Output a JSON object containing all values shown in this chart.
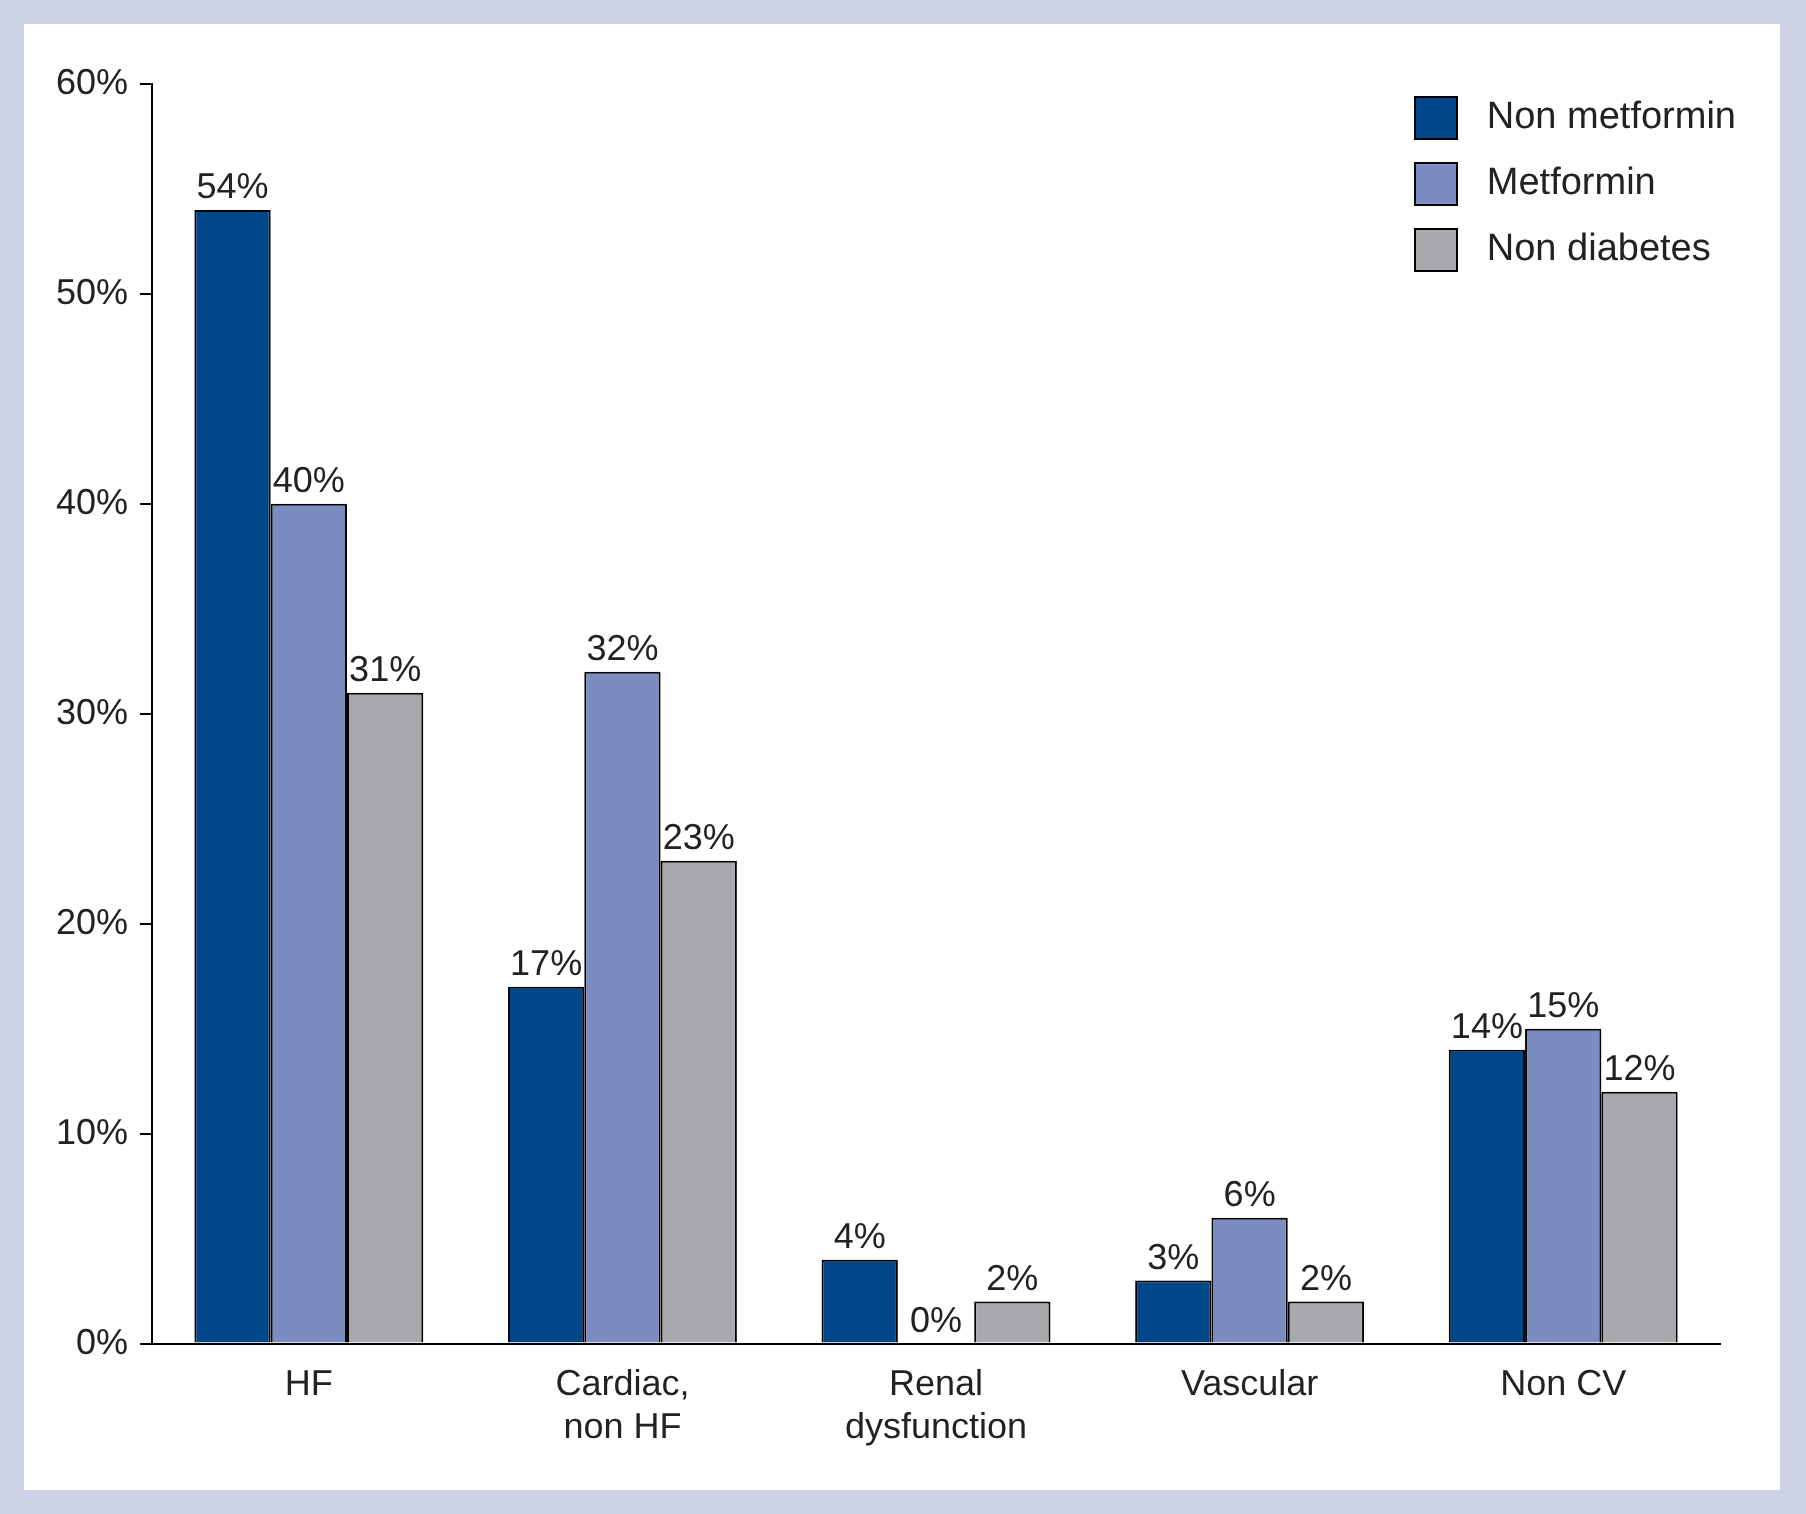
{
  "chart_data": {
    "type": "bar",
    "categories": [
      "HF",
      "Cardiac, non HF",
      "Renal dysfunction",
      "Vascular",
      "Non CV"
    ],
    "series": [
      {
        "name": "Non metformin",
        "color": "#00468b",
        "values": [
          54,
          17,
          4,
          3,
          14
        ],
        "value_labels": [
          "54%",
          "17%",
          "4%",
          "3%",
          "14%"
        ]
      },
      {
        "name": "Metformin",
        "color": "#7b8cc0",
        "values": [
          40,
          32,
          0,
          6,
          15
        ],
        "value_labels": [
          "40%",
          "32%",
          "0%",
          "6%",
          "15%"
        ]
      },
      {
        "name": "Non diabetes",
        "color": "#a8a9ad",
        "values": [
          31,
          23,
          2,
          2,
          12
        ],
        "value_labels": [
          "31%",
          "23%",
          "2%",
          "2%",
          "12%"
        ]
      }
    ],
    "ylim": [
      0,
      60
    ],
    "yticks": [
      {
        "value": 0,
        "label": "0%"
      },
      {
        "value": 10,
        "label": "10%"
      },
      {
        "value": 20,
        "label": "20%"
      },
      {
        "value": 30,
        "label": "30%"
      },
      {
        "value": 40,
        "label": "40%"
      },
      {
        "value": 50,
        "label": "50%"
      },
      {
        "value": 60,
        "label": "60%"
      }
    ],
    "grid": false,
    "legend": "top right"
  }
}
